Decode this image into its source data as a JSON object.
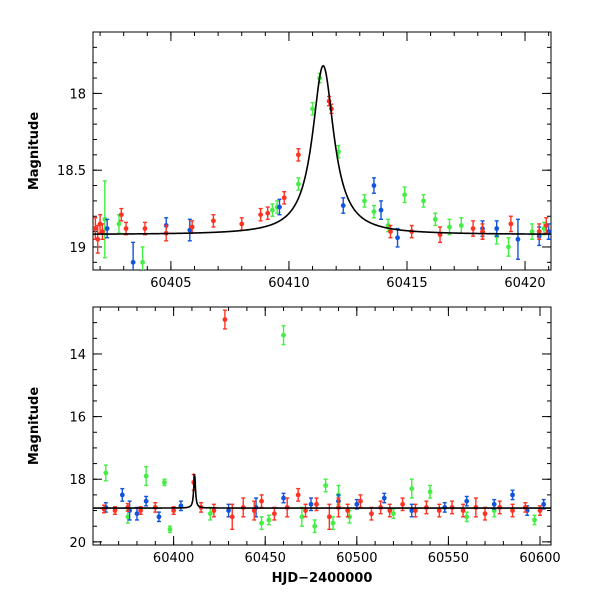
{
  "colors": {
    "green": "#44ee44",
    "blue": "#1155dd",
    "red": "#ff3322",
    "model": "#000000"
  },
  "chart_data": [
    {
      "type": "scatter",
      "title": "",
      "xlabel": "",
      "ylabel": "Magnitude",
      "xlim": [
        60401.7,
        60421.1
      ],
      "ylim": [
        19.15,
        17.6
      ],
      "y_inverted": true,
      "xticks": [
        60405,
        60410,
        60415,
        60420
      ],
      "yticks": [
        18,
        18.5,
        19
      ],
      "xtick_labels": [
        "60405",
        "60410",
        "60415",
        "60420"
      ],
      "ytick_labels": [
        "18",
        "18.5",
        "19"
      ],
      "model_curve": {
        "type": "line",
        "baseline": 18.92,
        "peak_x": 60411.45,
        "peak_mag": 17.82,
        "half_width": 0.55
      },
      "series": [
        {
          "color": "green",
          "points": [
            [
              60402.2,
              18.82,
              0.25
            ],
            [
              60402.8,
              18.85,
              0.06
            ],
            [
              60403.8,
              19.1,
              0.1
            ],
            [
              60409.3,
              18.76,
              0.04
            ],
            [
              60409.5,
              18.74,
              0.04
            ],
            [
              60410.4,
              18.59,
              0.04
            ],
            [
              60411.0,
              18.1,
              0.04
            ],
            [
              60411.3,
              17.9,
              0.03
            ],
            [
              60412.1,
              18.38,
              0.04
            ],
            [
              60413.2,
              18.7,
              0.04
            ],
            [
              60413.6,
              18.77,
              0.04
            ],
            [
              60414.2,
              18.86,
              0.04
            ],
            [
              60414.9,
              18.66,
              0.05
            ],
            [
              60415.7,
              18.7,
              0.04
            ],
            [
              60416.2,
              18.82,
              0.04
            ],
            [
              60416.8,
              18.87,
              0.05
            ],
            [
              60417.3,
              18.86,
              0.05
            ],
            [
              60418.8,
              18.93,
              0.05
            ],
            [
              60419.3,
              19.0,
              0.06
            ],
            [
              60420.3,
              18.9,
              0.05
            ],
            [
              60420.8,
              18.88,
              0.04
            ]
          ]
        },
        {
          "color": "blue",
          "points": [
            [
              60402.3,
              18.88,
              0.06
            ],
            [
              60403.4,
              19.1,
              0.13
            ],
            [
              60404.8,
              18.86,
              0.05
            ],
            [
              60405.8,
              18.89,
              0.07
            ],
            [
              60409.6,
              18.74,
              0.05
            ],
            [
              60412.3,
              18.73,
              0.05
            ],
            [
              60413.6,
              18.6,
              0.05
            ],
            [
              60413.9,
              18.76,
              0.06
            ],
            [
              60414.6,
              18.94,
              0.06
            ],
            [
              60418.2,
              18.88,
              0.05
            ],
            [
              60418.8,
              18.88,
              0.05
            ],
            [
              60419.7,
              18.95,
              0.13
            ],
            [
              60420.6,
              18.93,
              0.06
            ],
            [
              60421.0,
              18.9,
              0.05
            ]
          ]
        },
        {
          "color": "red",
          "points": [
            [
              60401.8,
              18.88,
              0.07
            ],
            [
              60401.9,
              18.95,
              0.09
            ],
            [
              60402.0,
              18.85,
              0.06
            ],
            [
              60402.1,
              18.9,
              0.05
            ],
            [
              60402.9,
              18.79,
              0.04
            ],
            [
              60403.1,
              18.88,
              0.04
            ],
            [
              60403.9,
              18.88,
              0.04
            ],
            [
              60404.8,
              18.91,
              0.05
            ],
            [
              60405.9,
              18.87,
              0.04
            ],
            [
              60406.8,
              18.83,
              0.04
            ],
            [
              60408.0,
              18.85,
              0.04
            ],
            [
              60408.8,
              18.79,
              0.04
            ],
            [
              60409.1,
              18.78,
              0.04
            ],
            [
              60409.8,
              18.68,
              0.04
            ],
            [
              60410.4,
              18.4,
              0.04
            ],
            [
              60411.7,
              18.05,
              0.03
            ],
            [
              60411.8,
              18.1,
              0.03
            ],
            [
              60414.3,
              18.9,
              0.04
            ],
            [
              60416.4,
              18.92,
              0.05
            ],
            [
              60417.8,
              18.88,
              0.05
            ],
            [
              60418.2,
              18.9,
              0.05
            ],
            [
              60419.4,
              18.85,
              0.05
            ],
            [
              60420.6,
              18.9,
              0.05
            ],
            [
              60420.9,
              18.86,
              0.05
            ],
            [
              60415.2,
              18.9,
              0.04
            ]
          ]
        }
      ]
    },
    {
      "type": "scatter",
      "title": "",
      "xlabel": "HJD−2400000",
      "ylabel": "Magnitude",
      "xlim": [
        60356,
        60606
      ],
      "ylim": [
        20.1,
        12.5
      ],
      "y_inverted": true,
      "xticks": [
        60400,
        60450,
        60500,
        60550,
        60600
      ],
      "yticks": [
        14,
        16,
        18,
        20
      ],
      "xtick_labels": [
        "60400",
        "60450",
        "60500",
        "60550",
        "60600"
      ],
      "ytick_labels": [
        "14",
        "16",
        "18",
        "20"
      ],
      "model_curve": {
        "type": "line",
        "baseline": 18.92,
        "peak_x": 60411.45,
        "peak_mag": 17.82,
        "half_width": 0.55,
        "x_end": 60606
      },
      "series": [
        {
          "color": "green",
          "points": [
            [
              60363,
              17.8,
              0.25
            ],
            [
              60375,
              19.2,
              0.2
            ],
            [
              60385,
              17.9,
              0.3
            ],
            [
              60395,
              18.1,
              0.1
            ],
            [
              60398,
              19.6,
              0.1
            ],
            [
              60420,
              19.1,
              0.2
            ],
            [
              60448,
              19.4,
              0.2
            ],
            [
              60452,
              19.3,
              0.15
            ],
            [
              60460,
              13.4,
              0.3
            ],
            [
              60470,
              19.2,
              0.3
            ],
            [
              60477,
              19.5,
              0.2
            ],
            [
              60483,
              18.2,
              0.2
            ],
            [
              60487,
              19.4,
              0.2
            ],
            [
              60490,
              18.5,
              0.3
            ],
            [
              60496,
              19.2,
              0.2
            ],
            [
              60520,
              19.1,
              0.15
            ],
            [
              60530,
              18.3,
              0.3
            ],
            [
              60540,
              18.4,
              0.2
            ],
            [
              60560,
              19.2,
              0.15
            ],
            [
              60575,
              19.0,
              0.2
            ],
            [
              60597,
              19.3,
              0.15
            ]
          ]
        },
        {
          "color": "blue",
          "points": [
            [
              60363,
              18.9,
              0.15
            ],
            [
              60372,
              18.5,
              0.2
            ],
            [
              60376,
              19.0,
              0.3
            ],
            [
              60380,
              19.1,
              0.2
            ],
            [
              60385,
              18.7,
              0.15
            ],
            [
              60392,
              19.2,
              0.15
            ],
            [
              60404,
              18.85,
              0.15
            ],
            [
              60430,
              19.0,
              0.2
            ],
            [
              60445,
              18.9,
              0.3
            ],
            [
              60460,
              18.6,
              0.15
            ],
            [
              60475,
              18.8,
              0.2
            ],
            [
              60490,
              18.7,
              0.2
            ],
            [
              60500,
              18.8,
              0.15
            ],
            [
              60515,
              18.6,
              0.15
            ],
            [
              60530,
              19.0,
              0.2
            ],
            [
              60548,
              18.9,
              0.15
            ],
            [
              60560,
              18.7,
              0.15
            ],
            [
              60575,
              18.8,
              0.15
            ],
            [
              60585,
              18.5,
              0.15
            ],
            [
              60593,
              19.0,
              0.15
            ],
            [
              60602,
              18.8,
              0.15
            ]
          ]
        },
        {
          "color": "red",
          "points": [
            [
              60362,
              18.95,
              0.12
            ],
            [
              60368,
              19.0,
              0.12
            ],
            [
              60375,
              18.9,
              0.12
            ],
            [
              60382,
              19.0,
              0.12
            ],
            [
              60390,
              18.9,
              0.15
            ],
            [
              60400,
              19.0,
              0.12
            ],
            [
              60411,
              18.1,
              0.25
            ],
            [
              60415,
              18.9,
              0.15
            ],
            [
              60422,
              19.0,
              0.2
            ],
            [
              60428,
              12.9,
              0.3
            ],
            [
              60432,
              19.2,
              0.4
            ],
            [
              60438,
              18.9,
              0.3
            ],
            [
              60444,
              19.0,
              0.3
            ],
            [
              60448,
              18.7,
              0.2
            ],
            [
              60455,
              19.1,
              0.2
            ],
            [
              60462,
              18.9,
              0.3
            ],
            [
              60468,
              18.5,
              0.2
            ],
            [
              60472,
              19.0,
              0.2
            ],
            [
              60478,
              18.8,
              0.2
            ],
            [
              60485,
              19.2,
              0.4
            ],
            [
              60490,
              18.9,
              0.3
            ],
            [
              60495,
              19.0,
              0.2
            ],
            [
              60502,
              18.7,
              0.2
            ],
            [
              60508,
              19.1,
              0.2
            ],
            [
              60513,
              18.9,
              0.2
            ],
            [
              60518,
              19.0,
              0.2
            ],
            [
              60525,
              18.8,
              0.2
            ],
            [
              60532,
              19.0,
              0.2
            ],
            [
              60538,
              18.9,
              0.2
            ],
            [
              60545,
              19.0,
              0.2
            ],
            [
              60552,
              18.9,
              0.2
            ],
            [
              60558,
              19.0,
              0.2
            ],
            [
              60565,
              18.9,
              0.3
            ],
            [
              60570,
              19.1,
              0.2
            ],
            [
              60578,
              18.9,
              0.2
            ],
            [
              60585,
              19.0,
              0.2
            ],
            [
              60592,
              18.9,
              0.15
            ],
            [
              60600,
              19.0,
              0.15
            ]
          ]
        }
      ]
    }
  ]
}
